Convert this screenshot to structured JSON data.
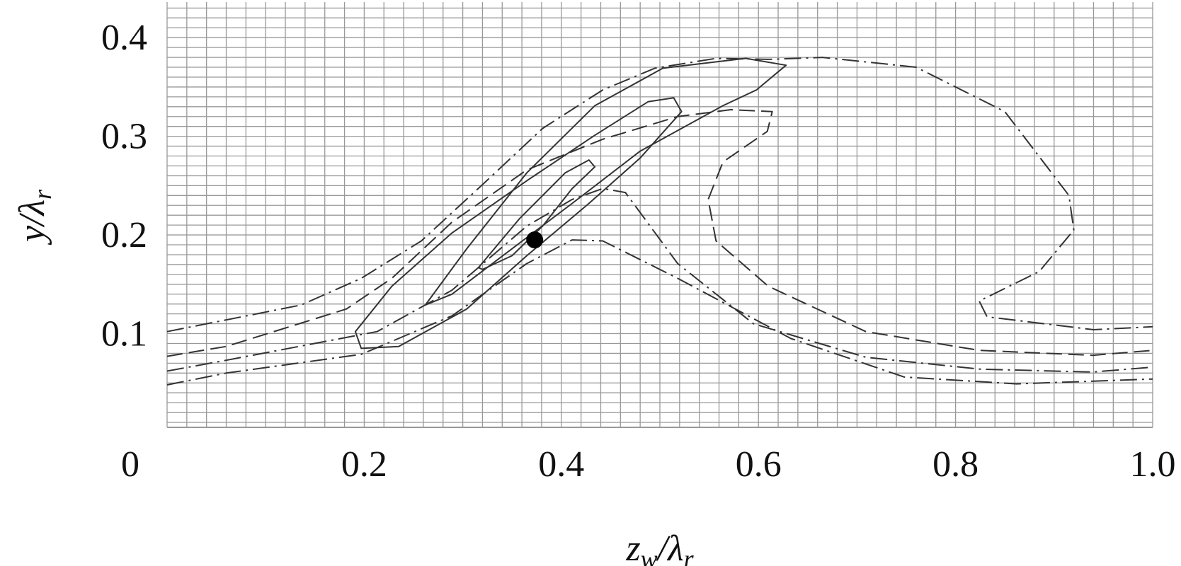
{
  "chart_data": {
    "type": "line",
    "xlabel": [
      "z",
      "w",
      "/λ",
      "r"
    ],
    "ylabel": [
      "y/λ",
      "r"
    ],
    "xlim": [
      0,
      1
    ],
    "ylim": [
      0.005,
      0.436
    ],
    "xticks": [
      0,
      0.2,
      0.4,
      0.6,
      0.8,
      {
        "value": 1,
        "label": "1.0"
      }
    ],
    "yticks": [
      0.1,
      0.2,
      0.3,
      0.4
    ],
    "grid": {
      "x_step": 0.02,
      "y_step": 0.01,
      "color": "#999"
    },
    "series": [
      {
        "color": "#333",
        "dash": "dash-dot",
        "closed": false,
        "x": [
          0,
          0.136,
          0.197,
          0.258,
          0.32,
          0.381,
          0.442,
          0.495,
          0.557,
          0.61,
          0.665,
          0.76,
          0.85,
          0.915,
          0.92,
          0.885,
          0.824,
          0.832,
          0.94,
          1.0
        ],
        "values": [
          0.102,
          0.129,
          0.156,
          0.194,
          0.251,
          0.308,
          0.347,
          0.369,
          0.379,
          0.378,
          0.38,
          0.37,
          0.325,
          0.24,
          0.205,
          0.163,
          0.133,
          0.117,
          0.104,
          0.107
        ]
      },
      {
        "color": "#333",
        "dash": "dash",
        "closed": false,
        "x": [
          0,
          0.06,
          0.182,
          0.228,
          0.289,
          0.365,
          0.442,
          0.518,
          0.572,
          0.614,
          0.609,
          0.564,
          0.549,
          0.557,
          0.61,
          0.709,
          0.824,
          0.939,
          1.0
        ],
        "values": [
          0.077,
          0.087,
          0.125,
          0.156,
          0.213,
          0.266,
          0.297,
          0.32,
          0.327,
          0.325,
          0.305,
          0.274,
          0.236,
          0.194,
          0.148,
          0.102,
          0.083,
          0.078,
          0.083
        ]
      },
      {
        "color": "#333",
        "dash": "dash-dot",
        "closed": false,
        "x": [
          0,
          0.06,
          0.213,
          0.289,
          0.365,
          0.411,
          0.442,
          0.465,
          0.518,
          0.595,
          0.709,
          0.824,
          0.939,
          1.0
        ],
        "values": [
          0.062,
          0.073,
          0.102,
          0.144,
          0.209,
          0.236,
          0.247,
          0.243,
          0.171,
          0.11,
          0.076,
          0.064,
          0.061,
          0.066
        ]
      },
      {
        "color": "#333",
        "dash": "dash-dot",
        "closed": false,
        "x": [
          0,
          0.06,
          0.197,
          0.289,
          0.365,
          0.411,
          0.442,
          0.518,
          0.633,
          0.748,
          0.862,
          1.0
        ],
        "values": [
          0.048,
          0.06,
          0.079,
          0.118,
          0.171,
          0.195,
          0.194,
          0.156,
          0.095,
          0.056,
          0.049,
          0.054
        ]
      },
      {
        "color": "#333",
        "dash": "solid",
        "closed": true,
        "x": [
          0.191,
          0.197,
          0.235,
          0.304,
          0.365,
          0.428,
          0.48,
          0.522,
          0.514,
          0.488,
          0.434,
          0.365,
          0.289,
          0.228
        ],
        "values": [
          0.102,
          0.085,
          0.087,
          0.125,
          0.179,
          0.232,
          0.278,
          0.325,
          0.339,
          0.335,
          0.301,
          0.255,
          0.202,
          0.148
        ]
      },
      {
        "color": "#333",
        "dash": "solid",
        "closed": true,
        "x": [
          0.262,
          0.304,
          0.365,
          0.434,
          0.503,
          0.587,
          0.628,
          0.598,
          0.564,
          0.48,
          0.411,
          0.35,
          0.289
        ],
        "values": [
          0.129,
          0.186,
          0.263,
          0.331,
          0.369,
          0.379,
          0.372,
          0.347,
          0.331,
          0.285,
          0.232,
          0.186,
          0.14
        ]
      },
      {
        "color": "#333",
        "dash": "solid",
        "closed": true,
        "x": [
          0.316,
          0.358,
          0.404,
          0.428,
          0.434,
          0.411,
          0.381,
          0.35,
          0.32
        ],
        "values": [
          0.167,
          0.217,
          0.263,
          0.276,
          0.269,
          0.247,
          0.209,
          0.179,
          0.165
        ]
      }
    ],
    "markers": [
      {
        "x": 0.373,
        "y": 0.195,
        "color": "#000"
      }
    ]
  }
}
